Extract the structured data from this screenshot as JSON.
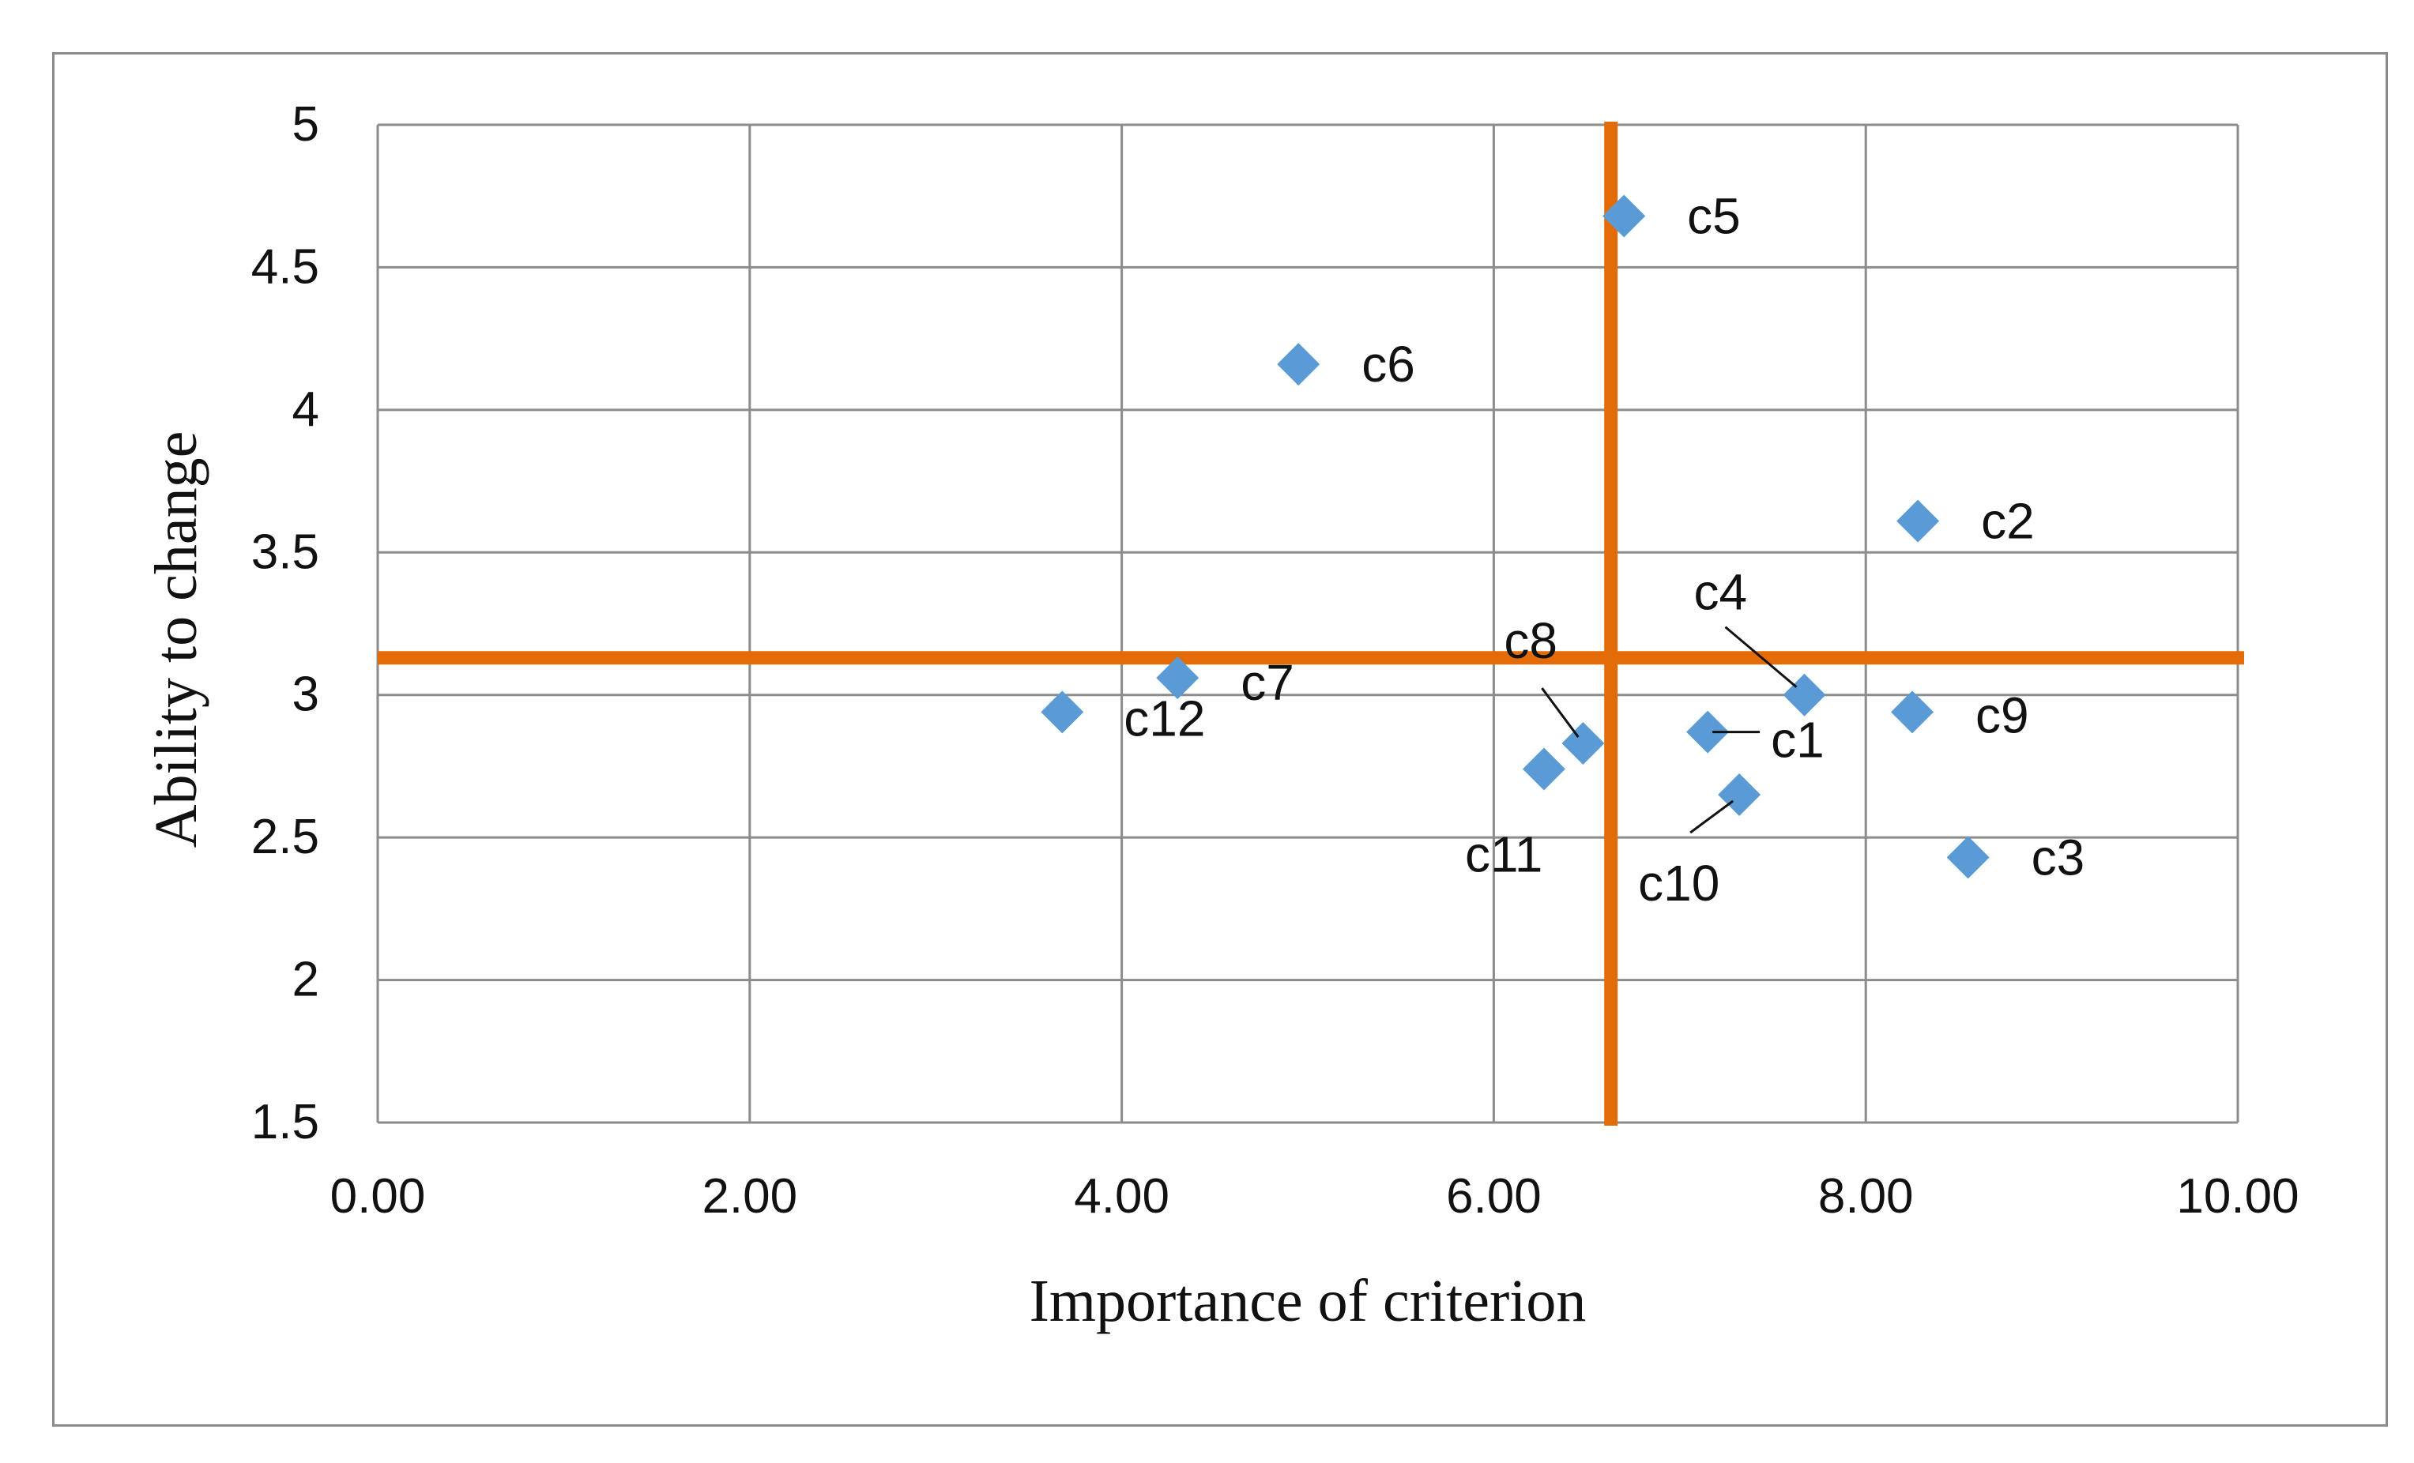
{
  "chart_data": {
    "type": "scatter",
    "title": "",
    "xlabel": "Importance of criterion",
    "ylabel": "Ability to change",
    "xlim": [
      0,
      10
    ],
    "ylim": [
      1.5,
      5
    ],
    "x_ticks": [
      0,
      2,
      4,
      6,
      8,
      10
    ],
    "x_tick_labels": [
      "0.00",
      "2.00",
      "4.00",
      "6.00",
      "8.00",
      "10.00"
    ],
    "y_ticks": [
      1.5,
      2,
      2.5,
      3,
      3.5,
      4,
      4.5,
      5
    ],
    "y_tick_labels": [
      "1.5",
      "2",
      "2.5",
      "3",
      "3.5",
      "4",
      "4.5",
      "5"
    ],
    "grid": true,
    "marker_color": "#5b9bd5",
    "reference_line_color": "#e36c09",
    "reference_lines": {
      "x": 6.63,
      "y": 3.13
    },
    "points": [
      {
        "label": "c1",
        "x": 7.15,
        "y": 2.87
      },
      {
        "label": "c2",
        "x": 8.28,
        "y": 3.61
      },
      {
        "label": "c3",
        "x": 8.55,
        "y": 2.43
      },
      {
        "label": "c4",
        "x": 7.67,
        "y": 3.0
      },
      {
        "label": "c5",
        "x": 6.7,
        "y": 4.68
      },
      {
        "label": "c6",
        "x": 4.95,
        "y": 4.16
      },
      {
        "label": "c7",
        "x": 4.3,
        "y": 3.06
      },
      {
        "label": "c8",
        "x": 6.48,
        "y": 2.83
      },
      {
        "label": "c9",
        "x": 8.25,
        "y": 2.94
      },
      {
        "label": "c10",
        "x": 7.32,
        "y": 2.65
      },
      {
        "label": "c11",
        "x": 6.27,
        "y": 2.74
      },
      {
        "label": "c12",
        "x": 3.68,
        "y": 2.94
      }
    ]
  }
}
